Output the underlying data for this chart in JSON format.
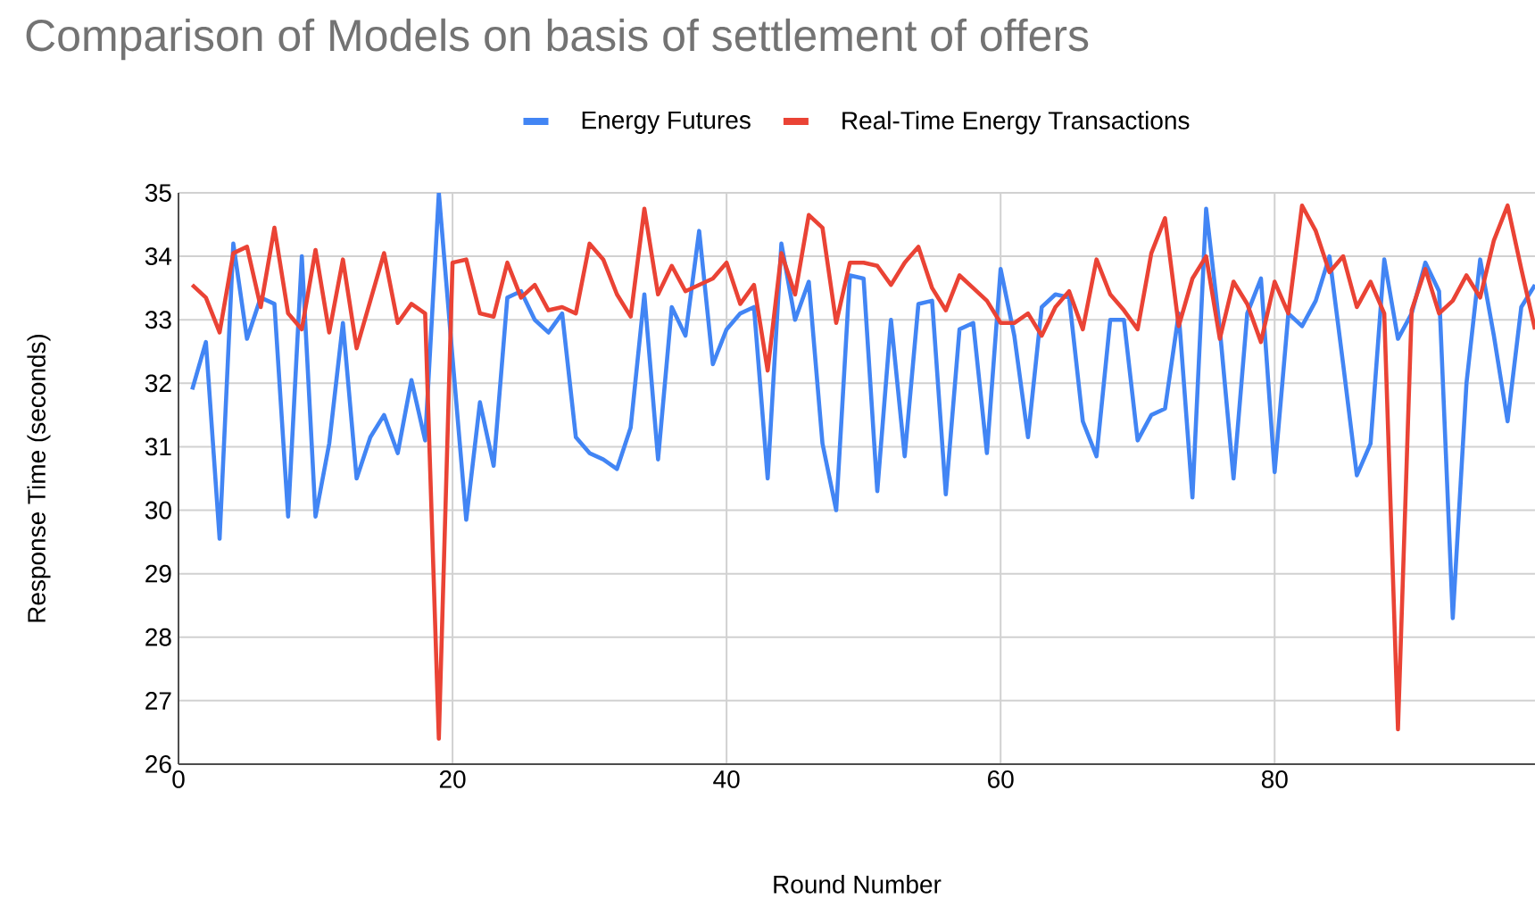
{
  "chart_data": {
    "type": "line",
    "title": "Comparison of Models on basis of settlement of offers",
    "xlabel": "Round Number",
    "ylabel": "Response Time (seconds)",
    "x": [
      1,
      2,
      3,
      4,
      5,
      6,
      7,
      8,
      9,
      10,
      11,
      12,
      13,
      14,
      15,
      16,
      17,
      18,
      19,
      20,
      21,
      22,
      23,
      24,
      25,
      26,
      27,
      28,
      29,
      30,
      31,
      32,
      33,
      34,
      35,
      36,
      37,
      38,
      39,
      40,
      41,
      42,
      43,
      44,
      45,
      46,
      47,
      48,
      49,
      50,
      51,
      52,
      53,
      54,
      55,
      56,
      57,
      58,
      59,
      60,
      61,
      62,
      63,
      64,
      65,
      66,
      67,
      68,
      69,
      70,
      71,
      72,
      73,
      74,
      75,
      76,
      77,
      78,
      79,
      80,
      81,
      82,
      83,
      84,
      85,
      86,
      87,
      88,
      89,
      90,
      91,
      92,
      93,
      94,
      95,
      96,
      97,
      98,
      99
    ],
    "series": [
      {
        "name": "Energy Futures",
        "color": "#4285f4",
        "values": [
          31.9,
          32.65,
          29.55,
          34.2,
          32.7,
          33.35,
          33.25,
          29.9,
          34.0,
          29.9,
          31.05,
          32.95,
          30.5,
          31.15,
          31.5,
          30.9,
          32.05,
          31.1,
          35.0,
          32.4,
          29.85,
          31.7,
          30.7,
          33.35,
          33.45,
          33.0,
          32.8,
          33.1,
          31.15,
          30.9,
          30.8,
          30.65,
          31.3,
          33.4,
          30.8,
          33.2,
          32.75,
          34.4,
          32.3,
          32.85,
          33.1,
          33.2,
          30.5,
          34.2,
          33.0,
          33.6,
          31.05,
          30.0,
          33.7,
          33.65,
          30.3,
          33.0,
          30.85,
          33.25,
          33.3,
          30.25,
          32.85,
          32.95,
          30.9,
          33.8,
          32.75,
          31.15,
          33.2,
          33.4,
          33.35,
          31.4,
          30.85,
          33.0,
          33.0,
          31.1,
          31.5,
          31.6,
          33.1,
          30.2,
          34.75,
          32.85,
          30.5,
          33.1,
          33.65,
          30.6,
          33.1,
          32.9,
          33.3,
          34.0,
          32.3,
          30.55,
          31.05,
          33.95,
          32.7,
          33.1,
          33.9,
          33.45,
          28.3,
          32.0,
          33.95,
          32.75,
          31.4,
          33.2,
          33.55
        ]
      },
      {
        "name": "Real-Time Energy Transactions",
        "color": "#ea4335",
        "values": [
          33.55,
          33.35,
          32.8,
          34.05,
          34.15,
          33.2,
          34.45,
          33.1,
          32.85,
          34.1,
          32.8,
          33.95,
          32.55,
          33.3,
          34.05,
          32.95,
          33.25,
          33.1,
          26.4,
          33.9,
          33.95,
          33.1,
          33.05,
          33.9,
          33.35,
          33.55,
          33.15,
          33.2,
          33.1,
          34.2,
          33.95,
          33.4,
          33.05,
          34.75,
          33.4,
          33.85,
          33.45,
          33.55,
          33.65,
          33.9,
          33.25,
          33.55,
          32.2,
          34.05,
          33.4,
          34.65,
          34.45,
          32.95,
          33.9,
          33.9,
          33.85,
          33.55,
          33.9,
          34.15,
          33.5,
          33.15,
          33.7,
          33.5,
          33.3,
          32.95,
          32.95,
          33.1,
          32.75,
          33.2,
          33.45,
          32.85,
          33.95,
          33.4,
          33.15,
          32.85,
          34.05,
          34.6,
          32.9,
          33.65,
          34.0,
          32.7,
          33.6,
          33.25,
          32.65,
          33.6,
          33.1,
          34.8,
          34.4,
          33.75,
          34.0,
          33.2,
          33.6,
          33.1,
          26.55,
          33.15,
          33.8,
          33.1,
          33.3,
          33.7,
          33.35,
          34.25,
          34.8,
          33.8,
          32.85
        ]
      }
    ],
    "xlim": [
      0,
      99
    ],
    "ylim": [
      26,
      35
    ],
    "xticks": [
      0,
      20,
      40,
      60,
      80
    ],
    "yticks": [
      26,
      27,
      28,
      29,
      30,
      31,
      32,
      33,
      34,
      35
    ],
    "grid": true,
    "legend": "top"
  }
}
